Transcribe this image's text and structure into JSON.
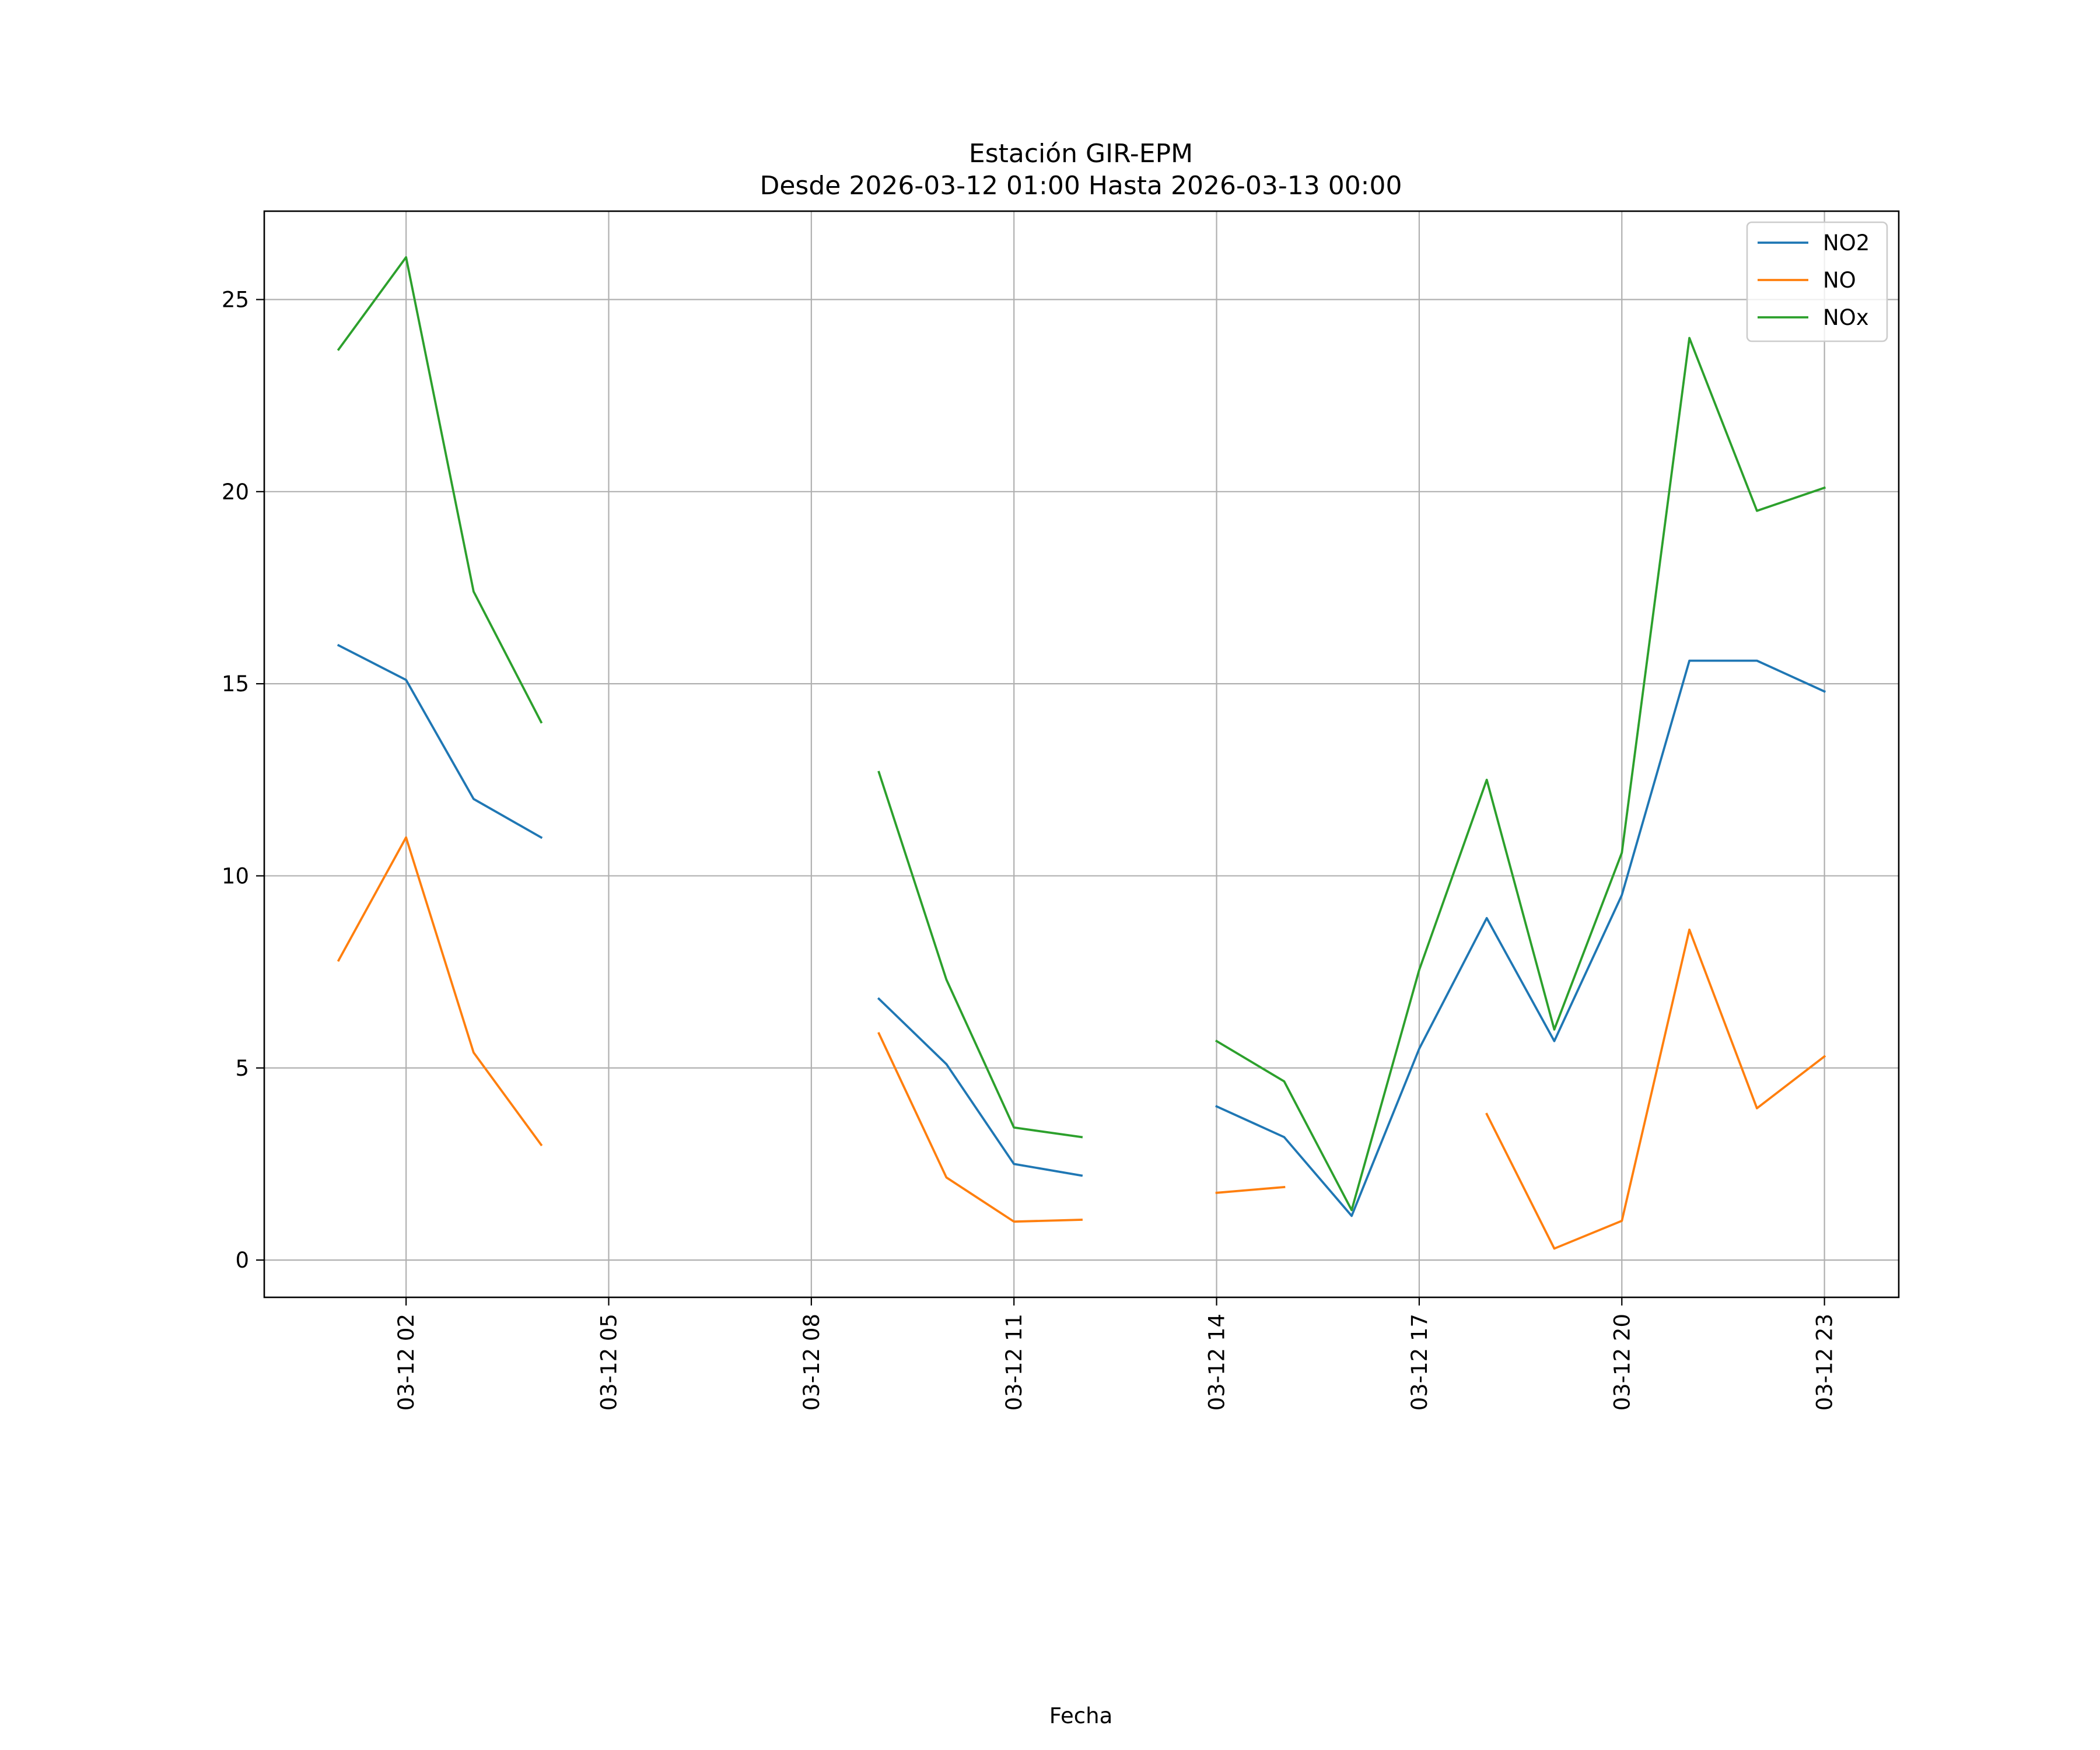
{
  "chart_data": {
    "type": "line",
    "title": "Estación GIR-EPM",
    "subtitle": "Desde 2026-03-12 01:00 Hasta 2026-03-13 00:00",
    "xlabel": "Fecha",
    "ylabel": "",
    "x": [
      "03-12 01",
      "03-12 02",
      "03-12 03",
      "03-12 04",
      "03-12 05",
      "03-12 06",
      "03-12 07",
      "03-12 08",
      "03-12 09",
      "03-12 10",
      "03-12 11",
      "03-12 12",
      "03-12 13",
      "03-12 14",
      "03-12 15",
      "03-12 16",
      "03-12 17",
      "03-12 18",
      "03-12 19",
      "03-12 20",
      "03-12 21",
      "03-12 22",
      "03-12 23"
    ],
    "x_hours": [
      1,
      2,
      3,
      4,
      5,
      6,
      7,
      8,
      9,
      10,
      11,
      12,
      13,
      14,
      15,
      16,
      17,
      18,
      19,
      20,
      21,
      22,
      23
    ],
    "x_ticks": [
      {
        "hour": 2,
        "label": "03-12 02"
      },
      {
        "hour": 5,
        "label": "03-12 05"
      },
      {
        "hour": 8,
        "label": "03-12 08"
      },
      {
        "hour": 11,
        "label": "03-12 11"
      },
      {
        "hour": 14,
        "label": "03-12 14"
      },
      {
        "hour": 17,
        "label": "03-12 17"
      },
      {
        "hour": 20,
        "label": "03-12 20"
      },
      {
        "hour": 23,
        "label": "03-12 23"
      }
    ],
    "xlim": [
      -0.1,
      24.1
    ],
    "ylim": [
      -0.97,
      27.3
    ],
    "y_ticks": [
      0,
      5,
      10,
      15,
      20,
      25
    ],
    "grid": true,
    "legend_position": "top-right",
    "series": [
      {
        "name": "NO2",
        "color": "#1f77b4",
        "values": [
          16.0,
          15.1,
          12.0,
          11.0,
          null,
          null,
          null,
          null,
          6.8,
          5.1,
          2.5,
          2.2,
          null,
          4.0,
          3.2,
          1.15,
          5.5,
          8.9,
          5.7,
          9.5,
          15.6,
          15.6,
          14.8
        ]
      },
      {
        "name": "NO",
        "color": "#ff7f0e",
        "values": [
          7.8,
          11.0,
          5.4,
          3.0,
          null,
          null,
          null,
          null,
          5.9,
          2.15,
          1.0,
          1.05,
          null,
          1.75,
          1.9,
          null,
          null,
          3.8,
          0.3,
          1.02,
          8.6,
          3.95,
          5.3
        ]
      },
      {
        "name": "NOx",
        "color": "#2ca02c",
        "values": [
          23.7,
          26.1,
          17.4,
          14.0,
          null,
          null,
          null,
          null,
          12.7,
          7.3,
          3.45,
          3.2,
          null,
          5.7,
          4.65,
          1.3,
          7.55,
          12.5,
          6.0,
          10.6,
          24.0,
          19.5,
          20.1
        ]
      }
    ]
  }
}
